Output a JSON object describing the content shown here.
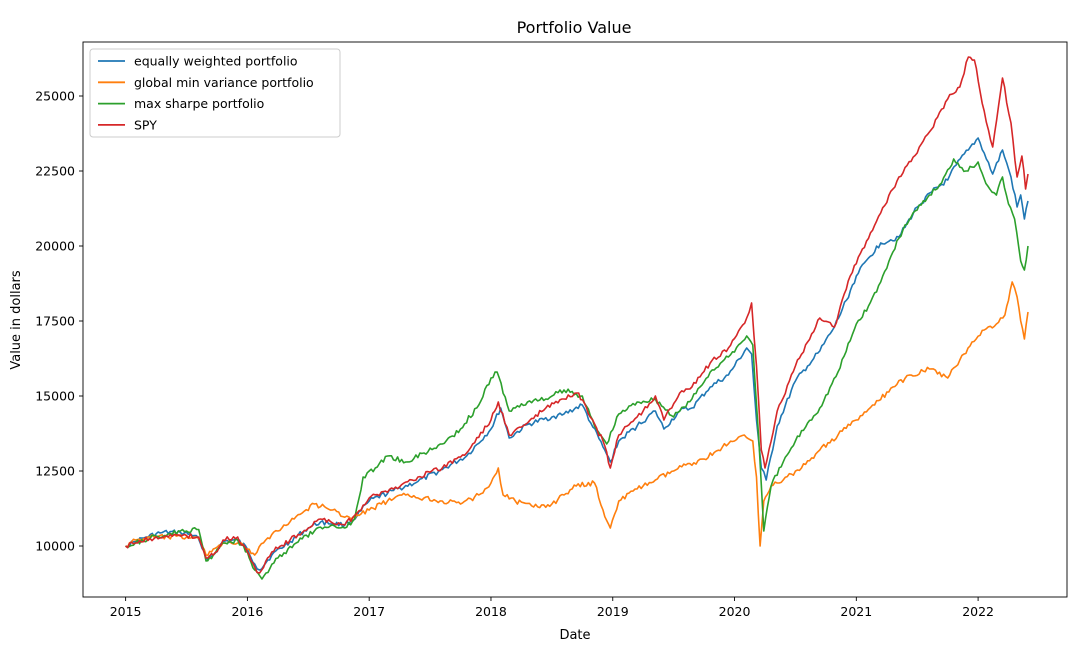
{
  "chart_data": {
    "type": "line",
    "title": "Portfolio Value",
    "xlabel": "Date",
    "ylabel": "Value in dollars",
    "xlim": [
      2014.65,
      2022.73
    ],
    "ylim": [
      8300,
      26800
    ],
    "xticks": [
      2015,
      2016,
      2017,
      2018,
      2019,
      2020,
      2021,
      2022
    ],
    "xtick_labels": [
      "2015",
      "2016",
      "2017",
      "2018",
      "2019",
      "2020",
      "2021",
      "2022"
    ],
    "yticks": [
      10000,
      12500,
      15000,
      17500,
      20000,
      22500,
      25000
    ],
    "ytick_labels": [
      "10000",
      "12500",
      "15000",
      "17500",
      "20000",
      "22500",
      "25000"
    ],
    "grid": false,
    "legend_position": "upper-left",
    "series": [
      {
        "name": "equally weighted portfolio",
        "color": "#1f77b4",
        "x": [
          2015.0,
          2015.08,
          2015.17,
          2015.3,
          2015.45,
          2015.58,
          2015.66,
          2015.72,
          2015.8,
          2015.92,
          2016.0,
          2016.06,
          2016.1,
          2016.2,
          2016.35,
          2016.5,
          2016.6,
          2016.8,
          2016.9,
          2017.0,
          2017.2,
          2017.4,
          2017.6,
          2017.8,
          2018.0,
          2018.08,
          2018.15,
          2018.3,
          2018.5,
          2018.6,
          2018.75,
          2018.82,
          2018.92,
          2018.98,
          2019.05,
          2019.2,
          2019.35,
          2019.42,
          2019.55,
          2019.65,
          2019.8,
          2019.95,
          2020.1,
          2020.14,
          2020.18,
          2020.22,
          2020.26,
          2020.35,
          2020.5,
          2020.6,
          2020.7,
          2020.82,
          2020.92,
          2021.0,
          2021.1,
          2021.2,
          2021.35,
          2021.5,
          2021.62,
          2021.75,
          2021.82,
          2021.92,
          2022.0,
          2022.05,
          2022.12,
          2022.2,
          2022.27,
          2022.32,
          2022.35,
          2022.38,
          2022.41
        ],
        "values": [
          10000,
          10150,
          10300,
          10450,
          10450,
          10350,
          9600,
          9700,
          10150,
          10200,
          9900,
          9400,
          9200,
          9700,
          10150,
          10600,
          10800,
          10700,
          11000,
          11500,
          11850,
          12150,
          12550,
          13000,
          13900,
          14600,
          13600,
          14050,
          14300,
          14400,
          14700,
          14100,
          13300,
          12800,
          13500,
          14000,
          14500,
          13900,
          14500,
          14600,
          15300,
          15700,
          16600,
          16400,
          14200,
          12600,
          12200,
          14000,
          15500,
          16000,
          16500,
          17300,
          18200,
          19000,
          19600,
          20100,
          20300,
          21300,
          21800,
          22200,
          22700,
          23200,
          23600,
          23100,
          22400,
          23200,
          22300,
          21300,
          21700,
          20900,
          21500
        ]
      },
      {
        "name": "global min variance portfolio",
        "color": "#ff7f0e",
        "x": [
          2015.0,
          2015.08,
          2015.2,
          2015.35,
          2015.5,
          2015.6,
          2015.66,
          2015.72,
          2015.8,
          2015.92,
          2016.0,
          2016.06,
          2016.15,
          2016.3,
          2016.45,
          2016.55,
          2016.7,
          2016.85,
          2017.0,
          2017.15,
          2017.3,
          2017.45,
          2017.6,
          2017.75,
          2017.9,
          2018.0,
          2018.06,
          2018.1,
          2018.2,
          2018.35,
          2018.5,
          2018.6,
          2018.7,
          2018.85,
          2018.92,
          2018.98,
          2019.05,
          2019.2,
          2019.35,
          2019.5,
          2019.6,
          2019.75,
          2019.9,
          2020.0,
          2020.08,
          2020.15,
          2020.18,
          2020.21,
          2020.24,
          2020.3,
          2020.4,
          2020.55,
          2020.7,
          2020.85,
          2021.0,
          2021.15,
          2021.3,
          2021.45,
          2021.6,
          2021.75,
          2021.85,
          2021.95,
          2022.05,
          2022.15,
          2022.22,
          2022.28,
          2022.32,
          2022.35,
          2022.38,
          2022.41
        ],
        "values": [
          10000,
          10200,
          10300,
          10300,
          10300,
          10250,
          9700,
          9900,
          10100,
          10100,
          9900,
          9700,
          10200,
          10700,
          11100,
          11400,
          11200,
          10900,
          11200,
          11500,
          11700,
          11600,
          11500,
          11400,
          11700,
          12100,
          12600,
          11700,
          11500,
          11300,
          11400,
          11700,
          12000,
          12100,
          11200,
          10600,
          11500,
          11900,
          12200,
          12500,
          12700,
          12900,
          13300,
          13500,
          13700,
          13500,
          12300,
          10000,
          11500,
          12000,
          12200,
          12600,
          13200,
          13700,
          14200,
          14700,
          15300,
          15700,
          15900,
          15600,
          16200,
          16800,
          17200,
          17400,
          17700,
          18800,
          18300,
          17500,
          16900,
          17800
        ]
      },
      {
        "name": "max sharpe portfolio",
        "color": "#2ca02c",
        "x": [
          2015.0,
          2015.08,
          2015.2,
          2015.35,
          2015.5,
          2015.6,
          2015.66,
          2015.72,
          2015.8,
          2015.92,
          2016.0,
          2016.06,
          2016.12,
          2016.25,
          2016.4,
          2016.55,
          2016.7,
          2016.8,
          2016.88,
          2016.95,
          2017.05,
          2017.15,
          2017.3,
          2017.45,
          2017.6,
          2017.75,
          2017.9,
          2018.0,
          2018.05,
          2018.15,
          2018.3,
          2018.45,
          2018.6,
          2018.75,
          2018.85,
          2018.95,
          2019.05,
          2019.2,
          2019.35,
          2019.5,
          2019.65,
          2019.8,
          2019.95,
          2020.1,
          2020.15,
          2020.2,
          2020.24,
          2020.3,
          2020.4,
          2020.5,
          2020.6,
          2020.7,
          2020.85,
          2021.0,
          2021.1,
          2021.2,
          2021.3,
          2021.4,
          2021.5,
          2021.6,
          2021.7,
          2021.8,
          2021.9,
          2022.0,
          2022.08,
          2022.15,
          2022.2,
          2022.25,
          2022.3,
          2022.35,
          2022.38,
          2022.41
        ],
        "values": [
          10000,
          10100,
          10250,
          10400,
          10500,
          10550,
          9500,
          9700,
          10100,
          10200,
          9800,
          9200,
          8900,
          9600,
          10100,
          10500,
          10700,
          10600,
          10900,
          12300,
          12600,
          13000,
          12800,
          13100,
          13400,
          13900,
          14700,
          15600,
          15800,
          14500,
          14800,
          14900,
          15200,
          15000,
          14000,
          13400,
          14400,
          14800,
          14900,
          14300,
          14900,
          15800,
          16300,
          17000,
          16700,
          13500,
          10500,
          12000,
          12800,
          13500,
          14100,
          14600,
          15800,
          17400,
          18000,
          18800,
          19800,
          20700,
          21200,
          21700,
          22100,
          22900,
          22500,
          22800,
          22000,
          21700,
          22300,
          21400,
          20900,
          19500,
          19200,
          20000
        ]
      },
      {
        "name": "SPY",
        "color": "#d62728",
        "x": [
          2015.0,
          2015.08,
          2015.2,
          2015.35,
          2015.5,
          2015.6,
          2015.66,
          2015.72,
          2015.8,
          2015.92,
          2016.0,
          2016.06,
          2016.1,
          2016.2,
          2016.35,
          2016.5,
          2016.6,
          2016.8,
          2016.9,
          2017.0,
          2017.2,
          2017.4,
          2017.6,
          2017.8,
          2018.0,
          2018.06,
          2018.15,
          2018.3,
          2018.45,
          2018.6,
          2018.72,
          2018.8,
          2018.92,
          2018.98,
          2019.05,
          2019.2,
          2019.35,
          2019.42,
          2019.55,
          2019.65,
          2019.8,
          2019.95,
          2020.1,
          2020.14,
          2020.18,
          2020.22,
          2020.25,
          2020.35,
          2020.5,
          2020.6,
          2020.7,
          2020.82,
          2020.95,
          2021.05,
          2021.2,
          2021.35,
          2021.5,
          2021.6,
          2021.75,
          2021.85,
          2021.92,
          2021.97,
          2022.05,
          2022.12,
          2022.2,
          2022.27,
          2022.32,
          2022.36,
          2022.39,
          2022.41
        ],
        "values": [
          10000,
          10100,
          10250,
          10300,
          10350,
          10300,
          9600,
          9700,
          10200,
          10300,
          9800,
          9300,
          9100,
          9800,
          10200,
          10600,
          10900,
          10700,
          11100,
          11600,
          11900,
          12300,
          12600,
          13100,
          14200,
          14800,
          13700,
          14100,
          14600,
          14900,
          15100,
          14400,
          13500,
          12600,
          13700,
          14300,
          15000,
          14200,
          15100,
          15300,
          16100,
          16600,
          17600,
          18100,
          16000,
          13200,
          12600,
          14500,
          16000,
          16800,
          17600,
          17300,
          19000,
          19900,
          21100,
          22300,
          23100,
          23800,
          24900,
          25300,
          26300,
          26200,
          24500,
          23300,
          25600,
          24100,
          22300,
          23000,
          21900,
          22400
        ]
      }
    ]
  }
}
